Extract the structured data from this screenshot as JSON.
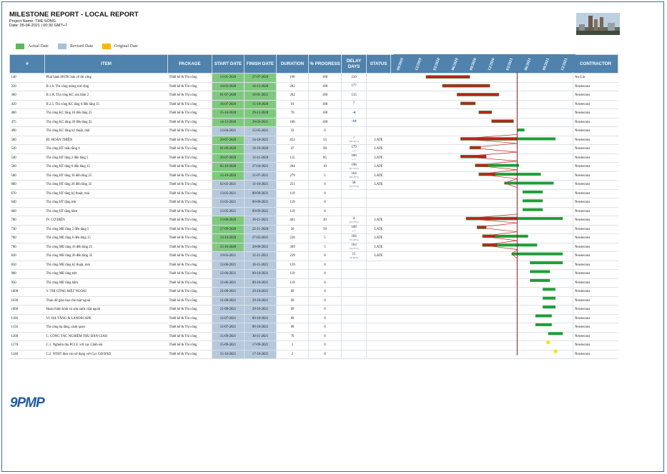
{
  "report": {
    "title": "MILESTONE REPORT - LOCAL REPORT",
    "project": "Project Name: THE SÓNG",
    "date": "Date: 05-04-2021 | 00:30 GMT+7"
  },
  "legend": [
    {
      "label": "Actual Date",
      "color": "#5cb85c"
    },
    {
      "label": "Revised Date",
      "color": "#a7c0dc"
    },
    {
      "label": "Original Date",
      "color": "#f5b800"
    }
  ],
  "columns": {
    "num": "#",
    "item": "ITEM",
    "package": "PACKAGE",
    "start": "START DATE",
    "finish": "FINISH DATE",
    "duration": "DURATION",
    "progress": "% PROGRESS",
    "delay": "DELAY DAYS",
    "status": "STATUS",
    "contractor": "CONTRACTOR"
  },
  "timeline": {
    "ticks": [
      "09/2019",
      "12/2019",
      "03/2020",
      "06/2020",
      "09/2020",
      "12/2020",
      "03/2021",
      "06/2021",
      "09/2021",
      "12/2021"
    ],
    "today_marker": "05-04-2021"
  },
  "colors": {
    "header_bg": "#4f82ac",
    "actual": "#5cb85c",
    "revised": "#a7c0dc",
    "bar_green": "#1e9e36",
    "bar_red": "#b3261e",
    "milestone": "#f5e600",
    "today": "#8b1a1a"
  },
  "rows": [
    {
      "num": "140",
      "item": "Phát hành HSTK bản vẽ thi công",
      "package": "Thiết kế & Thi công",
      "start": "13-01-2020",
      "finish": "27-07-2020",
      "start_actual": true,
      "finish_actual": true,
      "duration": "196",
      "progress": "100",
      "delay": "210",
      "delay_pct": "",
      "status": "",
      "contractor": "An Gia"
    },
    {
      "num": "350",
      "item": "II.1.S. Thi công móng mở rộng",
      "package": "Thiết kế & Thi công",
      "start": "10-03-2020",
      "finish": "16-12-2020",
      "start_actual": true,
      "finish_actual": true,
      "duration": "282",
      "progress": "100",
      "delay": "177",
      "delay_pct": "",
      "status": "",
      "contractor": "Newtecons"
    },
    {
      "num": "360",
      "item": "II.1.A. Thi công KC sàn hầm 2",
      "package": "Thiết kế & Thi công",
      "start": "01-07-2020",
      "finish": "18-01-2021",
      "start_actual": true,
      "finish_actual": true,
      "duration": "202",
      "progress": "100",
      "delay": "135",
      "delay_pct": "",
      "status": "",
      "contractor": "Newtecons"
    },
    {
      "num": "450",
      "item": "II.2.5. Thi công KC tầng 6 đến tầng 15",
      "package": "Thiết kế & Thi công",
      "start": "16-07-2020",
      "finish": "15-10-2020",
      "start_actual": true,
      "finish_actual": true,
      "duration": "91",
      "progress": "100",
      "delay": "7",
      "delay_pct": "",
      "status": "",
      "contractor": "Newtecons"
    },
    {
      "num": "460",
      "item": "Thi công KC tầng 16 đến tầng 25",
      "package": "Thiết kế & Thi công",
      "start": "15-10-2020",
      "finish": "29-12-2020",
      "start_actual": true,
      "finish_actual": true,
      "duration": "76",
      "progress": "100",
      "delay": "-4",
      "delay_pct": "",
      "status": "",
      "contractor": "Newtecons"
    },
    {
      "num": "475",
      "item": "Thi công KC tầng 26 đến tầng 35",
      "package": "Thiết kế & Thi công",
      "start": "14-12-2020",
      "finish": "29-03-2021",
      "start_actual": true,
      "finish_actual": true,
      "duration": "106",
      "progress": "100",
      "delay": "-14",
      "delay_pct": "",
      "status": "",
      "contractor": "Newtecons"
    },
    {
      "num": "490",
      "item": "Thi công KC tầng kỹ thuật, mái",
      "package": "Thiết kế & Thi công",
      "start": "13-04-2021",
      "finish": "15-05-2021",
      "start_actual": false,
      "finish_actual": false,
      "duration": "32",
      "progress": "0",
      "delay": "",
      "delay_pct": "",
      "status": "",
      "contractor": "Newtecons"
    },
    {
      "num": "500",
      "item": "III. HOÀN THIỆN",
      "package": "Thiết kế & Thi công",
      "start": "20-07-2020",
      "finish": "14-10-2021",
      "start_actual": true,
      "finish_actual": false,
      "duration": "452",
      "progress": "55",
      "delay": "7",
      "delay_pct": "(96.34%)",
      "status": "LATE",
      "contractor": "Newtecons"
    },
    {
      "num": "520",
      "item": "Thi công HT mẫu tầng 4",
      "package": "Thiết kế & Thi công",
      "start": "01-09-2020",
      "finish": "18-10-2020",
      "start_actual": true,
      "finish_actual": false,
      "duration": "47",
      "progress": "90",
      "delay": "179",
      "delay_pct": "(--)",
      "status": "LATE",
      "contractor": "Newtecons"
    },
    {
      "num": "540",
      "item": "Thi công HT tầng 2 đến tầng 5",
      "package": "Thiết kế & Thi công",
      "start": "20-07-2020",
      "finish": "12-11-2020",
      "start_actual": true,
      "finish_actual": false,
      "duration": "115",
      "progress": "85",
      "delay": "188",
      "delay_pct": "(--)",
      "status": "LATE",
      "contractor": "Newtecons"
    },
    {
      "num": "560",
      "item": "Thi công HT tầng 6 đến tầng 15",
      "package": "Thiết kế & Thi công",
      "start": "05-10-2020",
      "finish": "27-04-2021",
      "start_actual": true,
      "finish_actual": false,
      "duration": "204",
      "progress": "10",
      "delay": "198",
      "delay_pct": "(97.53%)",
      "status": "LATE",
      "contractor": "Newtecons"
    },
    {
      "num": "580",
      "item": "Thi công HT tầng 16 đến tầng 25",
      "package": "Thiết kế & Thi công",
      "start": "15-10-2020",
      "finish": "21-07-2021",
      "start_actual": true,
      "finish_actual": false,
      "duration": "279",
      "progress": "5",
      "delay": "164",
      "delay_pct": "(48.23%)",
      "status": "LATE",
      "contractor": "Newtecons"
    },
    {
      "num": "600",
      "item": "Thi công HT tầng 26 đến tầng 35",
      "package": "Thiết kế & Thi công",
      "start": "02-02-2021",
      "finish": "11-10-2021",
      "start_actual": false,
      "finish_actual": false,
      "duration": "251",
      "progress": "0",
      "delay": "58",
      "delay_pct": "(12.53%)",
      "status": "LATE",
      "contractor": "Newtecons"
    },
    {
      "num": "670",
      "item": "Thi công HT tầng kỹ thuật, mái",
      "package": "Thiết kế & Thi công",
      "start": "13-05-2021",
      "finish": "09-09-2021",
      "start_actual": false,
      "finish_actual": false,
      "duration": "119",
      "progress": "0",
      "delay": "",
      "delay_pct": "",
      "status": "",
      "contractor": "Newtecons"
    },
    {
      "num": "640",
      "item": "Thi công HT tầng trệt",
      "package": "Thiết kế & Thi công",
      "start": "13-05-2021",
      "finish": "09-09-2021",
      "start_actual": false,
      "finish_actual": false,
      "duration": "119",
      "progress": "0",
      "delay": "",
      "delay_pct": "",
      "status": "",
      "contractor": "Newtecons"
    },
    {
      "num": "660",
      "item": "Thi công HT tầng hầm",
      "package": "Thiết kế & Thi công",
      "start": "13-05-2021",
      "finish": "09-09-2021",
      "start_actual": false,
      "finish_actual": false,
      "duration": "119",
      "progress": "0",
      "delay": "",
      "delay_pct": "",
      "status": "",
      "contractor": "Newtecons"
    },
    {
      "num": "700",
      "item": "IV. CƠ ĐIỆN",
      "package": "Thiết kế & Thi công",
      "start": "13-08-2020",
      "finish": "18-11-2021",
      "start_actual": true,
      "finish_actual": false,
      "duration": "461",
      "progress": "49",
      "delay": "4",
      "delay_pct": "(45.70%)",
      "status": "LATE",
      "contractor": "Newtecons"
    },
    {
      "num": "730",
      "item": "Thi công ME tầng 2 đến tầng 5",
      "package": "Thiết kế & Thi công",
      "start": "27-09-2020",
      "finish": "22-11-2020",
      "start_actual": true,
      "finish_actual": false,
      "duration": "56",
      "progress": "50",
      "delay": "188",
      "delay_pct": "(--)",
      "status": "LATE",
      "contractor": "Newtecons"
    },
    {
      "num": "760",
      "item": "Thi công ME tầng 6 đến tầng 15",
      "package": "Thiết kế & Thi công",
      "start": "13-10-2020",
      "finish": "27-05-2021",
      "start_actual": true,
      "finish_actual": false,
      "duration": "226",
      "progress": "5",
      "delay": "184",
      "delay_pct": "(75.22%)",
      "status": "LATE",
      "contractor": "Newtecons"
    },
    {
      "num": "790",
      "item": "Thi công ME tầng 16 đến tầng 25",
      "package": "Thiết kế & Thi công",
      "start": "15-10-2020",
      "finish": "20-08-2021",
      "start_actual": true,
      "finish_actual": false,
      "duration": "309",
      "progress": "5",
      "delay": "163",
      "delay_pct": "(54.37%)",
      "status": "LATE",
      "contractor": "Newtecons"
    },
    {
      "num": "820",
      "item": "Thi công ME tầng 26 đến tầng 35",
      "package": "Thiết kế & Thi công",
      "start": "19-03-2021",
      "finish": "12-11-2021",
      "start_actual": false,
      "finish_actual": false,
      "duration": "239",
      "progress": "0",
      "delay": "15",
      "delay_pct": "(6.40%)",
      "status": "LATE",
      "contractor": "Newtecons"
    },
    {
      "num": "850",
      "item": "Thi công ME tầng kỹ thuật, mái",
      "package": "Thiết kế & Thi công",
      "start": "12-06-2021",
      "finish": "18-11-2021",
      "start_actual": false,
      "finish_actual": false,
      "duration": "159",
      "progress": "0",
      "delay": "",
      "delay_pct": "",
      "status": "",
      "contractor": "Newtecons"
    },
    {
      "num": "900",
      "item": "Thi công ME tầng trệt",
      "package": "Thiết kế & Thi công",
      "start": "12-06-2021",
      "finish": "09-10-2021",
      "start_actual": false,
      "finish_actual": false,
      "duration": "119",
      "progress": "0",
      "delay": "",
      "delay_pct": "",
      "status": "",
      "contractor": "Newtecons"
    },
    {
      "num": "950",
      "item": "Thi công ME tầng hầm",
      "package": "Thiết kế & Thi công",
      "start": "12-06-2021",
      "finish": "09-10-2021",
      "start_actual": false,
      "finish_actual": false,
      "duration": "119",
      "progress": "0",
      "delay": "",
      "delay_pct": "",
      "status": "",
      "contractor": "Newtecons"
    },
    {
      "num": "1000",
      "item": "V. THI CÔNG MẶT NGOÀI",
      "package": "Thiết kế & Thi công",
      "start": "21-08-2021",
      "finish": "29-10-2021",
      "start_actual": false,
      "finish_actual": false,
      "duration": "69",
      "progress": "0",
      "delay": "",
      "delay_pct": "",
      "status": "",
      "contractor": "Newtecons"
    },
    {
      "num": "1030",
      "item": "Tháo dỡ giàn bao che mặt ngoài",
      "package": "Thiết kế & Thi công",
      "start": "21-08-2021",
      "finish": "29-10-2021",
      "start_actual": false,
      "finish_actual": false,
      "duration": "69",
      "progress": "0",
      "delay": "",
      "delay_pct": "",
      "status": "",
      "contractor": "Newtecons"
    },
    {
      "num": "1060",
      "item": "Hoàn thiện kính và sơn nước mặt ngoài",
      "package": "Thiết kế & Thi công",
      "start": "21-08-2021",
      "finish": "29-10-2021",
      "start_actual": false,
      "finish_actual": false,
      "duration": "69",
      "progress": "0",
      "delay": "",
      "delay_pct": "",
      "status": "",
      "contractor": "Newtecons"
    },
    {
      "num": "1100",
      "item": "VI. HẠ TẦNG & LANDSCAPE",
      "package": "Thiết kế & Thi công",
      "start": "12-07-2021",
      "finish": "09-10-2021",
      "start_actual": false,
      "finish_actual": false,
      "duration": "89",
      "progress": "0",
      "delay": "",
      "delay_pct": "",
      "status": "",
      "contractor": "Newtecons"
    },
    {
      "num": "1150",
      "item": "Thi công hạ tầng, cảnh quan",
      "package": "Thiết kế & Thi công",
      "start": "12-07-2021",
      "finish": "09-10-2021",
      "start_actual": false,
      "finish_actual": false,
      "duration": "89",
      "progress": "0",
      "delay": "",
      "delay_pct": "",
      "status": "",
      "contractor": "Newtecons"
    },
    {
      "num": "1200",
      "item": "C. CÔNG TÁC NGHIỆM THU BÀN GIAO",
      "package": "Thiết kế & Thi công",
      "start": "15-09-2021",
      "finish": "30-11-2021",
      "start_actual": false,
      "finish_actual": false,
      "duration": "76",
      "progress": "0",
      "delay": "",
      "delay_pct": "",
      "status": "",
      "contractor": "Newtecons"
    },
    {
      "num": "1270",
      "item": "C.1. Nghiệm thu PCCC với cục Cảnh sát",
      "package": "Thiết kế & Thi công",
      "start": "15-09-2021",
      "finish": "17-09-2021",
      "start_actual": false,
      "finish_actual": false,
      "duration": "2",
      "progress": "0",
      "delay": "",
      "delay_pct": "",
      "status": "",
      "contractor": "Newtecons"
    },
    {
      "num": "1240",
      "item": "C.2. NTHT đưa vào sử dụng với Cục GĐ BXD",
      "package": "Thiết kế & Thi công",
      "start": "15-10-2021",
      "finish": "17-10-2021",
      "start_actual": false,
      "finish_actual": false,
      "duration": "2",
      "progress": "0",
      "delay": "",
      "delay_pct": "",
      "status": "",
      "contractor": "Newtecons"
    }
  ],
  "gantt_bars": [
    {
      "red": [
        0.18,
        0.42
      ]
    },
    {
      "red": [
        0.27,
        0.53
      ]
    },
    {
      "red": [
        0.35,
        0.58
      ]
    },
    {
      "red": [
        0.37,
        0.45
      ]
    },
    {
      "red": [
        0.47,
        0.54
      ]
    },
    {
      "red": [
        0.54,
        0.66
      ]
    },
    {
      "green": [
        0.68,
        0.72
      ]
    },
    {
      "red": [
        0.37,
        0.68
      ],
      "green": [
        0.68,
        0.89
      ],
      "link": true
    },
    {
      "red": [
        0.42,
        0.48
      ],
      "link": true
    },
    {
      "red": [
        0.37,
        0.51
      ],
      "link": true
    },
    {
      "red": [
        0.45,
        0.52
      ],
      "green": [
        0.52,
        0.69
      ],
      "link": true
    },
    {
      "red": [
        0.47,
        0.56
      ],
      "green": [
        0.56,
        0.81
      ],
      "link": true
    },
    {
      "green": [
        0.61,
        0.88
      ],
      "link": true
    },
    {
      "green": [
        0.71,
        0.82
      ]
    },
    {
      "green": [
        0.71,
        0.82
      ]
    },
    {
      "green": [
        0.71,
        0.82
      ]
    },
    {
      "red": [
        0.4,
        0.68
      ],
      "green": [
        0.68,
        0.93
      ],
      "link": true
    },
    {
      "red": [
        0.46,
        0.51
      ],
      "link": true
    },
    {
      "red": [
        0.49,
        0.56
      ],
      "green": [
        0.56,
        0.74
      ],
      "link": true
    },
    {
      "red": [
        0.49,
        0.57
      ],
      "green": [
        0.57,
        0.79
      ],
      "link": true
    },
    {
      "green": [
        0.65,
        0.93
      ],
      "link": true
    },
    {
      "green": [
        0.75,
        0.93
      ]
    },
    {
      "green": [
        0.75,
        0.86
      ]
    },
    {
      "green": [
        0.75,
        0.86
      ]
    },
    {
      "green": [
        0.82,
        0.89
      ]
    },
    {
      "green": [
        0.82,
        0.89
      ]
    },
    {
      "green": [
        0.82,
        0.89
      ]
    },
    {
      "green": [
        0.78,
        0.87
      ]
    },
    {
      "green": [
        0.78,
        0.87
      ]
    },
    {
      "green": [
        0.85,
        0.93
      ]
    },
    {
      "milestone": 0.85
    },
    {
      "milestone": 0.89
    }
  ]
}
